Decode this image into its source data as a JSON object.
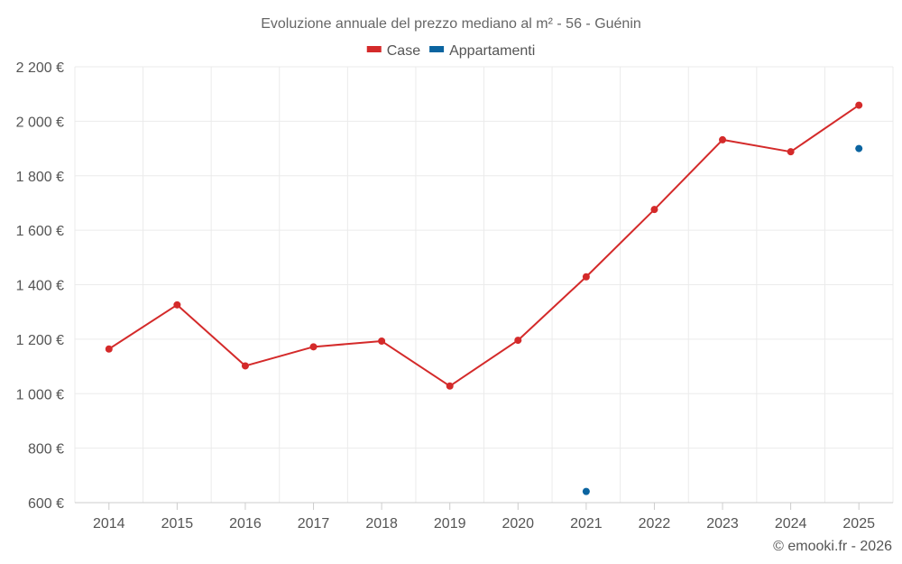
{
  "chart_data": {
    "type": "line",
    "title": "Evoluzione annuale del prezzo mediano al m² - 56 - Guénin",
    "xlabel": "",
    "ylabel": "",
    "categories": [
      "2014",
      "2015",
      "2016",
      "2017",
      "2018",
      "2019",
      "2020",
      "2021",
      "2022",
      "2023",
      "2024",
      "2025"
    ],
    "ylim": [
      600,
      2200
    ],
    "yticks": [
      600,
      800,
      1000,
      1200,
      1400,
      1600,
      1800,
      2000,
      2200
    ],
    "ytick_labels": [
      "600 €",
      "800 €",
      "1 000 €",
      "1 200 €",
      "1 400 €",
      "1 600 €",
      "1 800 €",
      "2 000 €",
      "2 200 €"
    ],
    "grid": true,
    "legend_position": "top-center",
    "series": [
      {
        "name": "Case",
        "color": "#d42a2a",
        "values": [
          1164,
          1326,
          1102,
          1172,
          1193,
          1028,
          1196,
          1429,
          1676,
          1932,
          1888,
          2059
        ]
      },
      {
        "name": "Appartamenti",
        "color": "#0b64a0",
        "values": [
          null,
          null,
          null,
          null,
          null,
          null,
          null,
          641,
          null,
          null,
          null,
          1900
        ]
      }
    ]
  },
  "credits": "© emooki.fr - 2026"
}
